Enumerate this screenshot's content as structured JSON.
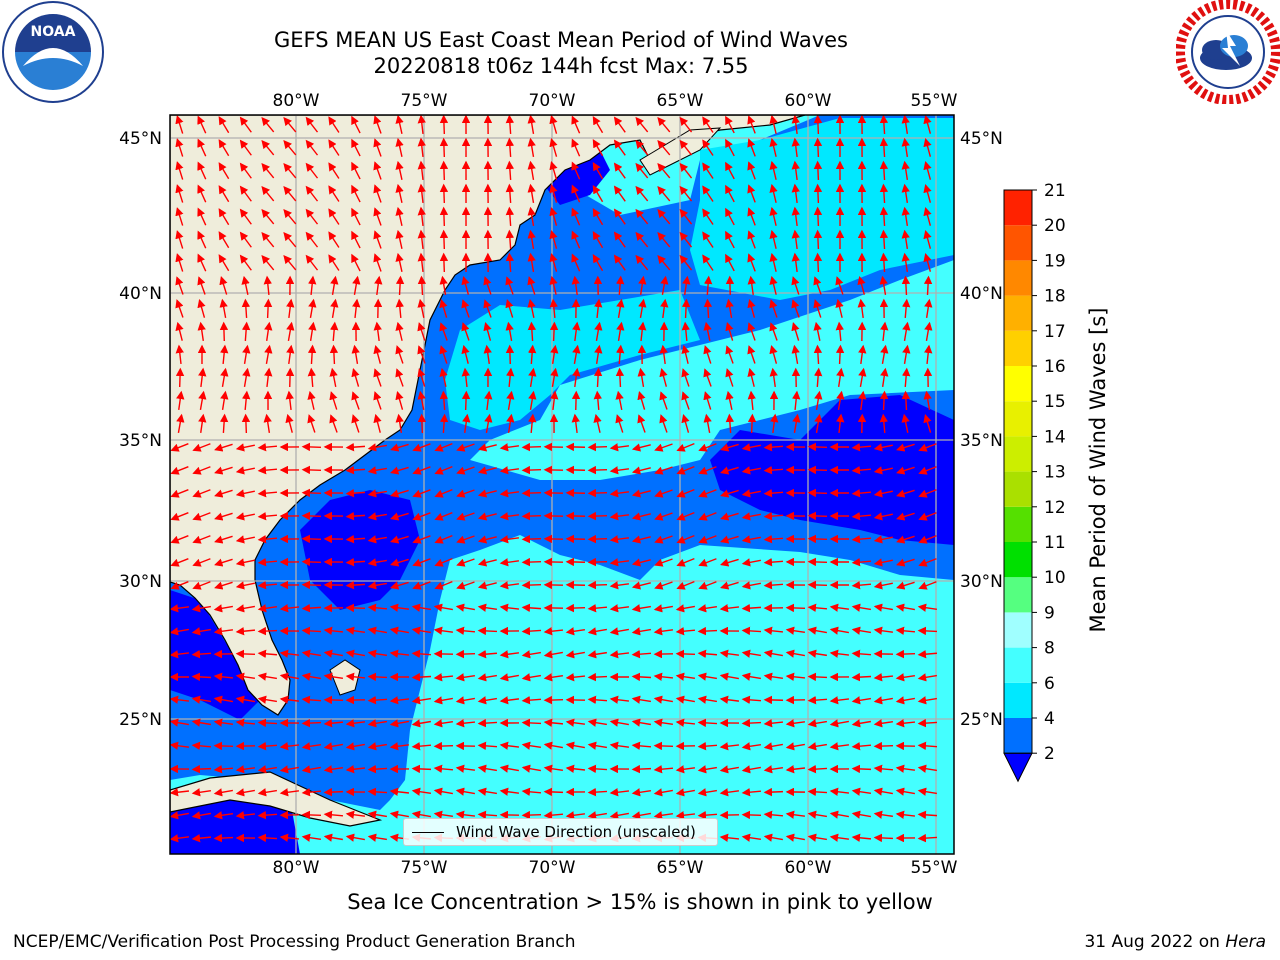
{
  "header": {
    "title_line1": "GEFS MEAN US East Coast Mean Period of Wind Waves",
    "title_line2": "20220818 t06z 144h fcst   Max: 7.55"
  },
  "logos": {
    "noaa": {
      "name": "noaa-logo",
      "text": "NOAA",
      "ring_text": "NATIONAL OCEANIC AND ATMOSPHERIC ADMINISTRATION · U.S. DEPARTMENT OF COMMERCE"
    },
    "nws": {
      "name": "nws-logo",
      "ring_text": "NATIONAL WEATHER SERVICE"
    }
  },
  "map": {
    "lon_ticks": [
      "80°W",
      "75°W",
      "70°W",
      "65°W",
      "60°W",
      "55°W"
    ],
    "lat_ticks": [
      "45°N",
      "40°N",
      "35°N",
      "30°N",
      "25°N"
    ],
    "lon_range": [
      -85,
      -54.4
    ],
    "lat_range": [
      20.5,
      45.8
    ],
    "land_color": "#efeddb",
    "grid_color": "#b0b0b0",
    "arrow_color": "#ff0000"
  },
  "legend": {
    "label": "Wind Wave Direction (unscaled)"
  },
  "colorbar": {
    "label": "Mean Period of Wind Waves [s]",
    "tick_labels": [
      "2",
      "4",
      "6",
      "8",
      "9",
      "10",
      "11",
      "12",
      "13",
      "14",
      "15",
      "16",
      "17",
      "18",
      "19",
      "20",
      "21"
    ],
    "colors": [
      "#0070ff",
      "#00e8ff",
      "#44ffff",
      "#a0ffff",
      "#55ff80",
      "#00e000",
      "#55e000",
      "#aae000",
      "#ccee00",
      "#e8f000",
      "#ffff00",
      "#ffd000",
      "#ffb000",
      "#ff8800",
      "#ff5500",
      "#ff2200"
    ],
    "under_color": "#0000ff"
  },
  "notes": {
    "sea_ice": "Sea Ice Concentration > 15% is shown in pink to yellow"
  },
  "footer": {
    "left": "NCEP/EMC/Verification Post Processing Product Generation Branch",
    "date": "31 Aug 2022 on ",
    "machine": "Hera"
  }
}
